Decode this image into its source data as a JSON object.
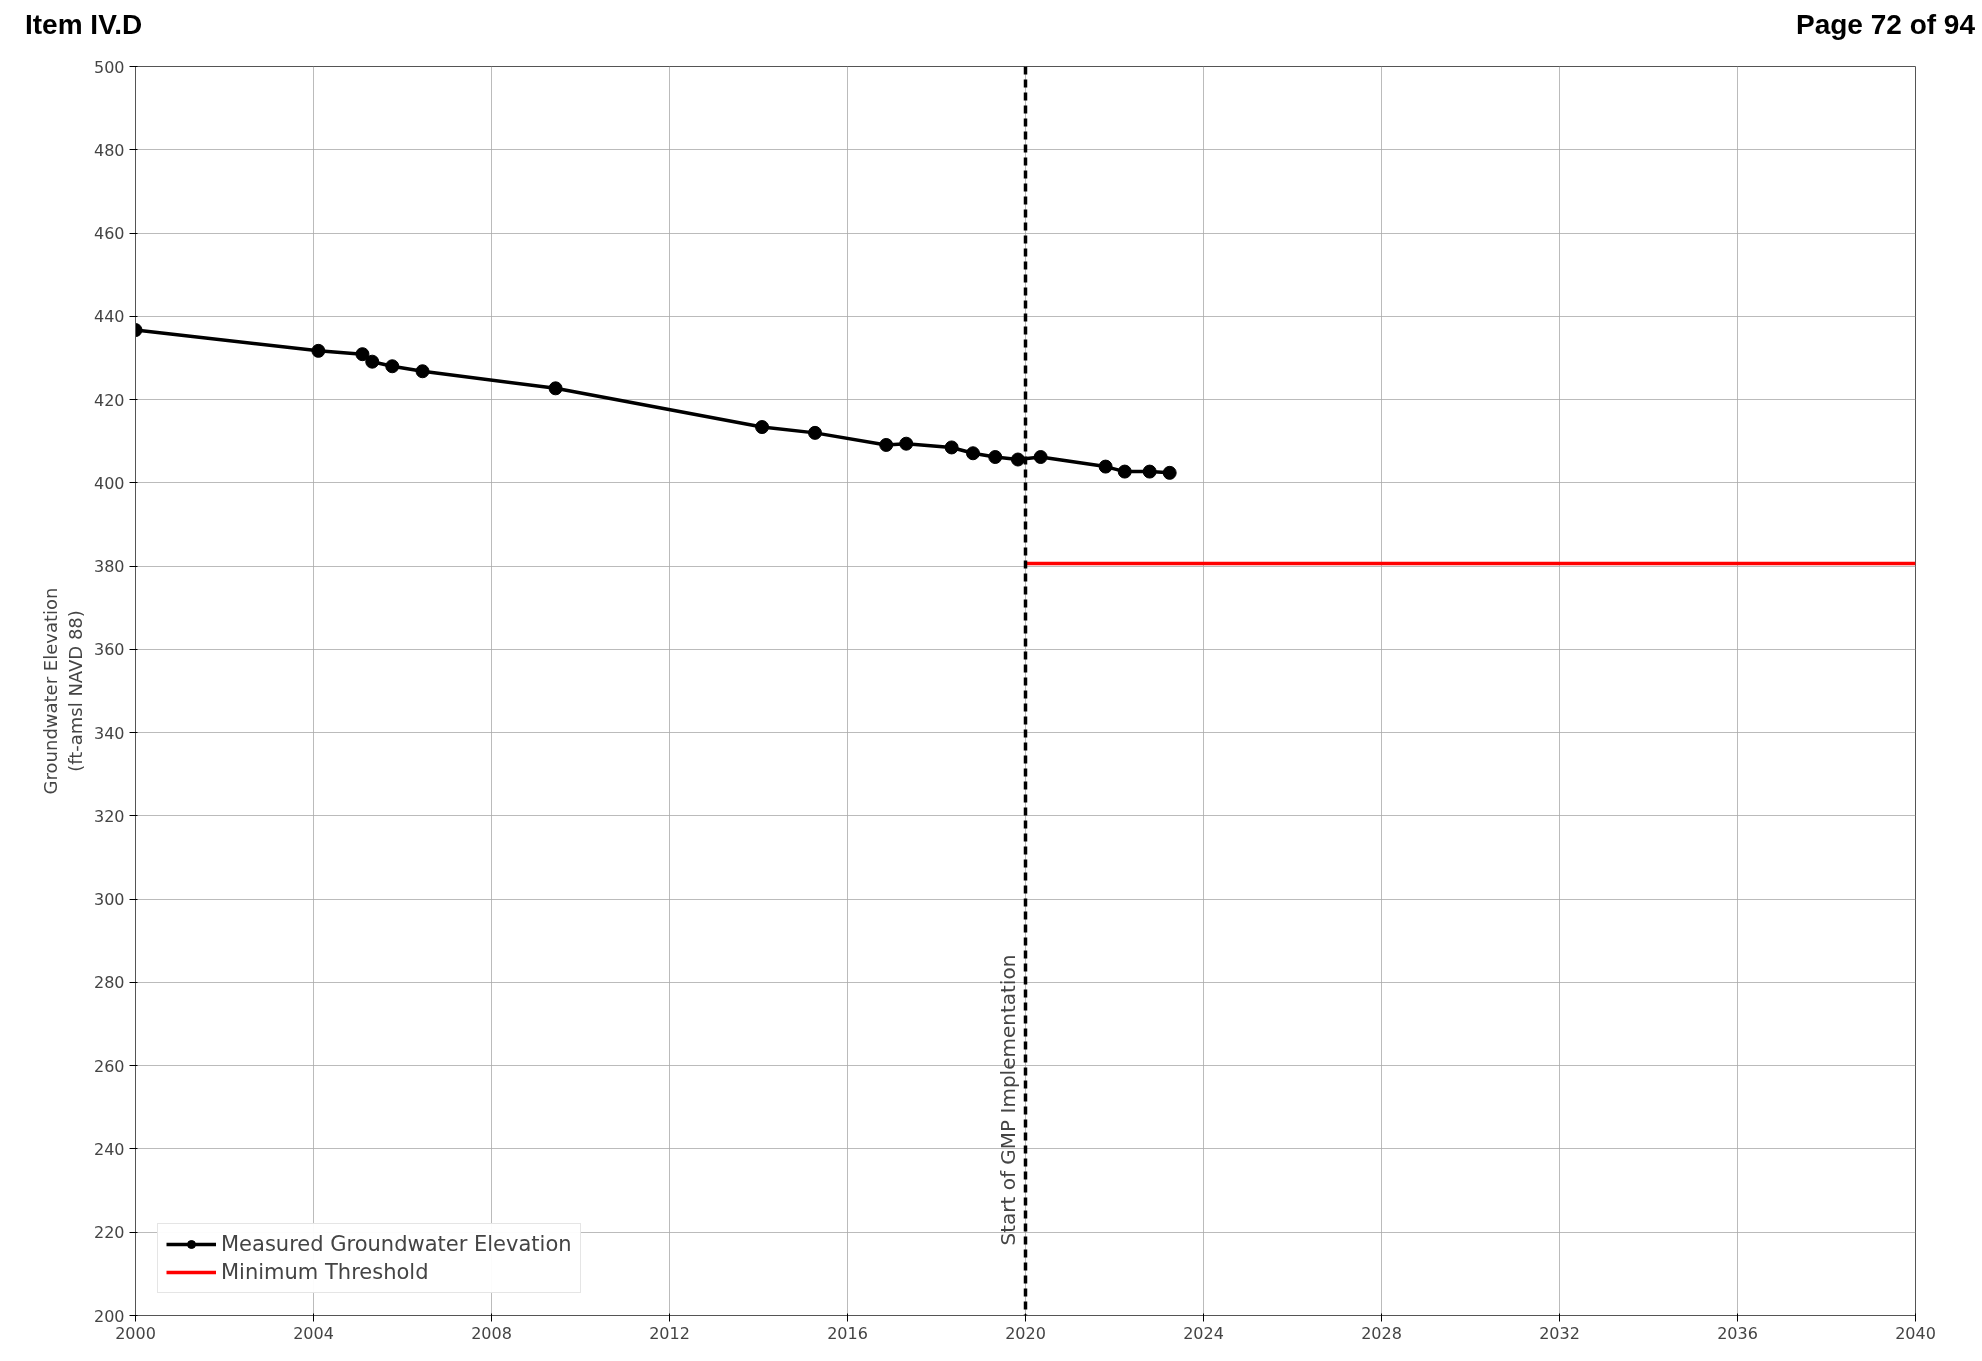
{
  "chart_data": {
    "type": "line",
    "ylabel": "Groundwater Elevation\n(ft-amsl NAVD 88)",
    "annotations": [
      "Item IV.D",
      "Page 72 of 94"
    ],
    "series": [
      {
        "name": "Measured Groundwater Elevation",
        "color": "#000000",
        "marker": "circle",
        "x": [
          2000,
          2004.11,
          2005.1,
          2005.32,
          2005.77,
          2006.45,
          2009.44,
          2014.08,
          2015.27,
          2016.87,
          2017.32,
          2018.34,
          2018.82,
          2019.32,
          2019.83,
          2020.34,
          2021.8,
          2022.23,
          2022.79,
          2023.24
        ],
        "values": [
          436.7,
          431.7,
          430.9,
          429.1,
          428.0,
          426.8,
          422.7,
          413.4,
          412.0,
          409.1,
          409.4,
          408.5,
          407.1,
          406.2,
          405.6,
          406.2,
          403.9,
          402.7,
          402.7,
          402.4
        ]
      },
      {
        "name": "Minimum Threshold",
        "color": "#ff0000",
        "marker": "none",
        "x": [
          2020,
          2040
        ],
        "values": [
          380.6,
          380.6
        ]
      }
    ],
    "ref_lines": [
      {
        "axis": "x",
        "value": 2020,
        "label": "Start of GMP Implementation",
        "color": "#000000",
        "line_style": "dashed"
      }
    ],
    "xlim": [
      2000,
      2040
    ],
    "xticks": [
      2000,
      2004,
      2008,
      2012,
      2016,
      2020,
      2024,
      2028,
      2032,
      2036,
      2040
    ],
    "ylim": [
      200,
      500
    ],
    "yticks": [
      200,
      220,
      240,
      260,
      280,
      300,
      320,
      340,
      360,
      380,
      400,
      420,
      440,
      460,
      480,
      500
    ],
    "grid": true,
    "legend": "bottom left",
    "line_style": "solid"
  }
}
